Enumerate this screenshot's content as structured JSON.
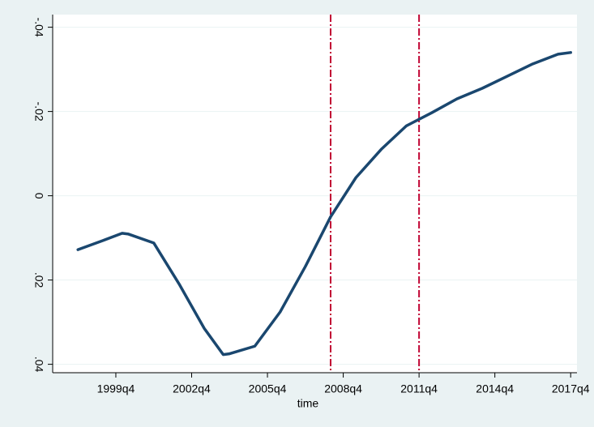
{
  "chart_data": {
    "type": "line",
    "x_label": "time",
    "x": [
      "1998q2",
      "1999q2",
      "2000q1",
      "2000q2",
      "2001q2",
      "2002q2",
      "2003q2",
      "2004q1",
      "2004q2",
      "2005q2",
      "2006q2",
      "2007q2",
      "2008q2",
      "2009q2",
      "2010q2",
      "2011q2",
      "2012q2",
      "2013q2",
      "2014q2",
      "2015q2",
      "2016q2",
      "2017q2",
      "2017q4"
    ],
    "series": [
      {
        "color": "#1a476f",
        "values": [
          0.0128,
          0.0106,
          0.0089,
          0.0091,
          0.0112,
          0.0209,
          0.0315,
          0.0377,
          0.0375,
          0.0357,
          0.0276,
          0.0168,
          0.005,
          -0.0043,
          -0.011,
          -0.0166,
          -0.0197,
          -0.023,
          -0.0255,
          -0.0284,
          -0.0313,
          -0.0336,
          -0.034
        ]
      }
    ],
    "xlim": [
      "1997q2",
      "2018q1"
    ],
    "xticks": [
      "1999q4",
      "2002q4",
      "2005q4",
      "2008q4",
      "2011q4",
      "2014q4",
      "2017q4"
    ],
    "ylim": [
      0.042,
      -0.043
    ],
    "yticks": [
      {
        "value": 0.04,
        "label": ".04"
      },
      {
        "value": 0.02,
        "label": ".02"
      },
      0,
      {
        "value": -0.02,
        "label": "-.02"
      },
      {
        "value": -0.04,
        "label": "-.04"
      }
    ],
    "grid": true,
    "vlines": [
      "2008q2",
      "2011q4"
    ],
    "vline_color": "#c10534"
  }
}
